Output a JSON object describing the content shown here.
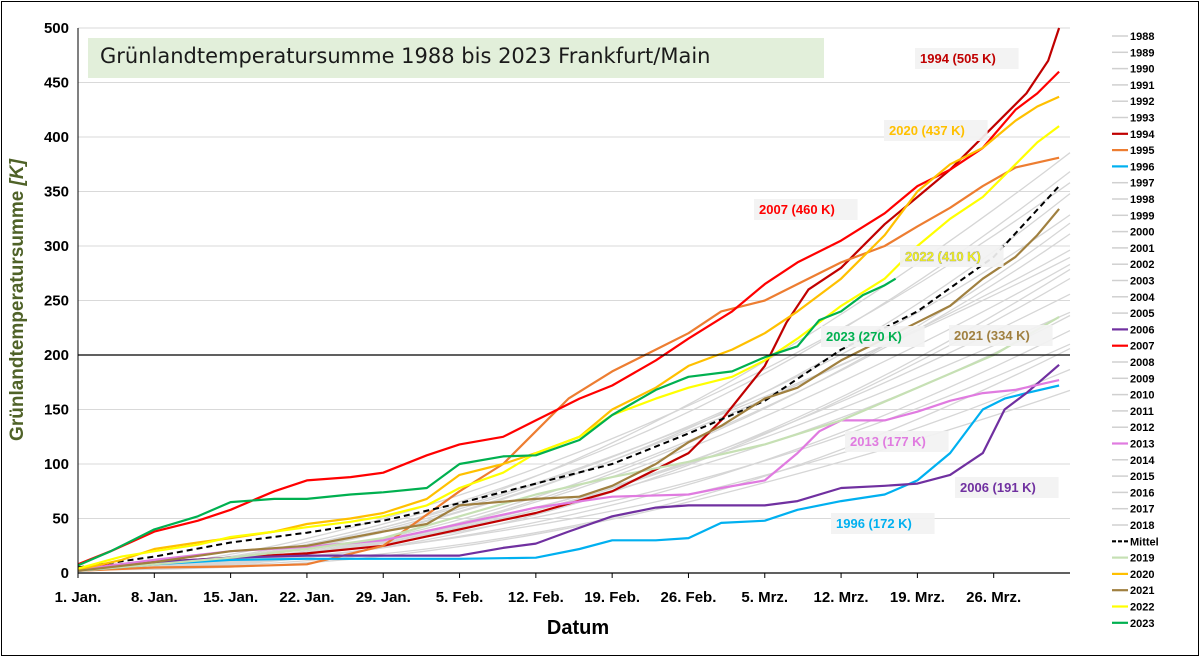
{
  "chart_data": {
    "type": "line",
    "title": "Grünlandtemperatursumme 1988 bis 2023 Frankfurt/Main",
    "xlabel": "Datum",
    "ylabel": "Grünlandtemperatursumme [K]",
    "ylim": [
      0,
      500
    ],
    "xlim": [
      1,
      92
    ],
    "y_ticks": [
      0,
      50,
      100,
      150,
      200,
      250,
      300,
      350,
      400,
      450,
      500
    ],
    "x_ticks": [
      {
        "day": 1,
        "label": "1. Jan."
      },
      {
        "day": 8,
        "label": "8. Jan."
      },
      {
        "day": 15,
        "label": "15. Jan."
      },
      {
        "day": 22,
        "label": "22. Jan."
      },
      {
        "day": 29,
        "label": "29. Jan."
      },
      {
        "day": 36,
        "label": "5. Feb."
      },
      {
        "day": 43,
        "label": "12. Feb."
      },
      {
        "day": 50,
        "label": "19. Feb."
      },
      {
        "day": 57,
        "label": "26. Feb."
      },
      {
        "day": 64,
        "label": "5. Mrz."
      },
      {
        "day": 71,
        "label": "12. Mrz."
      },
      {
        "day": 78,
        "label": "19. Mrz."
      },
      {
        "day": 85,
        "label": "26. Mrz."
      }
    ],
    "reference_line": 200,
    "grid": "horizontal",
    "legend_position": "right",
    "legend": [
      "1988",
      "1989",
      "1990",
      "1991",
      "1992",
      "1993",
      "1994",
      "1995",
      "1996",
      "1997",
      "1998",
      "1999",
      "2000",
      "2001",
      "2002",
      "2003",
      "2004",
      "2005",
      "2006",
      "2007",
      "2008",
      "2009",
      "2010",
      "2011",
      "2012",
      "2013",
      "2014",
      "2015",
      "2016",
      "2017",
      "2018",
      "Mittel",
      "2019",
      "2020",
      "2021",
      "2022",
      "2023"
    ],
    "highlight_colors": {
      "1994": "#c00000",
      "1995": "#ed7d31",
      "1996": "#00b0f0",
      "2006": "#7030a0",
      "2007": "#ff0000",
      "2013": "#e07be0",
      "Mittel": "#000000",
      "2019": "#c6e0b4",
      "2020": "#ffc000",
      "2021": "#a08040",
      "2022": "#ffff00",
      "2023": "#00b050",
      "default": "#d0d0d0"
    },
    "series": [
      {
        "name": "1994",
        "color": "#c00000",
        "x": [
          1,
          8,
          15,
          22,
          29,
          36,
          43,
          50,
          57,
          60,
          64,
          66,
          68,
          71,
          75,
          78,
          81,
          84,
          86,
          88,
          90,
          91
        ],
        "y": [
          5,
          10,
          14,
          18,
          25,
          40,
          55,
          75,
          110,
          140,
          190,
          230,
          260,
          280,
          320,
          345,
          370,
          400,
          420,
          440,
          470,
          505
        ]
      },
      {
        "name": "1995",
        "color": "#ed7d31",
        "x": [
          1,
          8,
          15,
          22,
          29,
          36,
          40,
          43,
          46,
          50,
          54,
          57,
          60,
          64,
          67,
          71,
          75,
          78,
          81,
          84,
          87,
          91
        ],
        "y": [
          2,
          5,
          6,
          8,
          25,
          75,
          100,
          130,
          160,
          185,
          205,
          220,
          240,
          250,
          265,
          285,
          300,
          318,
          335,
          355,
          372,
          381
        ]
      },
      {
        "name": "1996",
        "color": "#00b0f0",
        "x": [
          1,
          8,
          15,
          22,
          29,
          36,
          43,
          47,
          50,
          54,
          57,
          60,
          64,
          67,
          71,
          75,
          78,
          81,
          84,
          86,
          88,
          91
        ],
        "y": [
          2,
          8,
          12,
          13,
          13,
          13,
          14,
          22,
          30,
          30,
          32,
          46,
          48,
          58,
          66,
          72,
          85,
          110,
          150,
          160,
          165,
          172
        ]
      },
      {
        "name": "2006",
        "color": "#7030a0",
        "x": [
          1,
          8,
          15,
          22,
          29,
          36,
          40,
          43,
          46,
          50,
          54,
          57,
          60,
          64,
          67,
          71,
          75,
          78,
          81,
          84,
          86,
          88,
          91
        ],
        "y": [
          2,
          10,
          14,
          16,
          16,
          16,
          23,
          27,
          38,
          52,
          60,
          62,
          62,
          62,
          66,
          78,
          80,
          82,
          90,
          110,
          150,
          165,
          191
        ]
      },
      {
        "name": "2007",
        "color": "#ff0000",
        "x": [
          1,
          4,
          8,
          12,
          15,
          19,
          22,
          26,
          29,
          33,
          36,
          40,
          43,
          47,
          50,
          54,
          57,
          61,
          64,
          67,
          71,
          75,
          78,
          81,
          84,
          87,
          89,
          91
        ],
        "y": [
          8,
          20,
          38,
          48,
          58,
          75,
          85,
          88,
          92,
          108,
          118,
          125,
          140,
          160,
          172,
          195,
          215,
          240,
          265,
          285,
          305,
          330,
          355,
          370,
          390,
          425,
          440,
          460
        ]
      },
      {
        "name": "2013",
        "color": "#e07be0",
        "x": [
          1,
          8,
          15,
          22,
          29,
          36,
          43,
          50,
          57,
          60,
          64,
          67,
          69,
          71,
          75,
          78,
          81,
          84,
          87,
          91
        ],
        "y": [
          3,
          12,
          20,
          24,
          30,
          45,
          60,
          70,
          72,
          78,
          85,
          110,
          130,
          140,
          140,
          148,
          158,
          165,
          168,
          177
        ]
      },
      {
        "name": "Mittel",
        "color": "#000000",
        "dashed": true,
        "x": [
          1,
          8,
          15,
          22,
          29,
          36,
          43,
          50,
          57,
          64,
          71,
          78,
          85,
          91
        ],
        "y": [
          5,
          15,
          28,
          37,
          48,
          64,
          82,
          100,
          128,
          158,
          205,
          240,
          290,
          355
        ]
      },
      {
        "name": "2019",
        "color": "#c6e0b4",
        "x": [
          1,
          8,
          15,
          22,
          29,
          36,
          43,
          50,
          57,
          64,
          71,
          78,
          85,
          91
        ],
        "y": [
          2,
          8,
          14,
          22,
          32,
          52,
          72,
          88,
          102,
          118,
          140,
          170,
          200,
          235
        ]
      },
      {
        "name": "2020",
        "color": "#ffc000",
        "x": [
          1,
          5,
          8,
          12,
          15,
          19,
          22,
          26,
          29,
          33,
          36,
          40,
          43,
          47,
          50,
          54,
          57,
          61,
          64,
          67,
          71,
          75,
          78,
          81,
          84,
          87,
          89,
          91
        ],
        "y": [
          3,
          12,
          22,
          28,
          32,
          38,
          45,
          50,
          55,
          68,
          90,
          100,
          110,
          125,
          150,
          170,
          190,
          205,
          220,
          240,
          270,
          310,
          350,
          375,
          390,
          415,
          428,
          437
        ]
      },
      {
        "name": "2021",
        "color": "#a08040",
        "x": [
          1,
          8,
          15,
          22,
          29,
          33,
          36,
          43,
          47,
          50,
          54,
          57,
          60,
          64,
          67,
          71,
          75,
          78,
          81,
          84,
          87,
          89,
          91
        ],
        "y": [
          2,
          10,
          20,
          25,
          38,
          45,
          62,
          68,
          70,
          80,
          100,
          120,
          135,
          160,
          170,
          195,
          215,
          230,
          245,
          270,
          290,
          310,
          334
        ]
      },
      {
        "name": "2022",
        "color": "#ffff00",
        "x": [
          1,
          5,
          8,
          12,
          15,
          19,
          22,
          26,
          29,
          33,
          36,
          40,
          43,
          47,
          50,
          54,
          57,
          61,
          64,
          67,
          71,
          75,
          78,
          81,
          84,
          87,
          89,
          91
        ],
        "y": [
          4,
          15,
          20,
          26,
          33,
          38,
          42,
          47,
          52,
          62,
          78,
          92,
          110,
          125,
          145,
          160,
          170,
          180,
          195,
          215,
          245,
          270,
          300,
          325,
          345,
          375,
          395,
          410
        ]
      },
      {
        "name": "2023",
        "color": "#00b050",
        "x": [
          1,
          4,
          8,
          12,
          15,
          19,
          22,
          26,
          29,
          33,
          36,
          40,
          43,
          47,
          50,
          54,
          57,
          61,
          64,
          67,
          69,
          71,
          73,
          75,
          76
        ],
        "y": [
          7,
          20,
          40,
          52,
          65,
          68,
          68,
          72,
          74,
          78,
          100,
          107,
          108,
          122,
          145,
          168,
          180,
          185,
          198,
          208,
          232,
          240,
          255,
          264,
          270
        ]
      }
    ],
    "annotations": [
      {
        "label": "1994 (505 K)",
        "series": "1994",
        "color": "#c00000"
      },
      {
        "label": "2020 (437 K)",
        "series": "2020",
        "color": "#ffc000"
      },
      {
        "label": "2007 (460 K)",
        "series": "2007",
        "color": "#ff0000"
      },
      {
        "label": "2022 (410 K)",
        "series": "2022",
        "color": "#ffff00"
      },
      {
        "label": "2023 (270 K)",
        "series": "2023",
        "color": "#00b050"
      },
      {
        "label": "2021 (334 K)",
        "series": "2021",
        "color": "#a08040"
      },
      {
        "label": "2013 (177 K)",
        "series": "2013",
        "color": "#e07be0"
      },
      {
        "label": "2006 (191 K)",
        "series": "2006",
        "color": "#7030a0"
      },
      {
        "label": "1996 (172 K)",
        "series": "1996",
        "color": "#00b0f0"
      }
    ]
  }
}
